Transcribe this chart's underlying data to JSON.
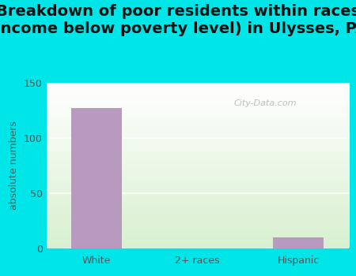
{
  "title": "Breakdown of poor residents within races\n(income below poverty level) in Ulysses, PA",
  "categories": [
    "White",
    "2+ races",
    "Hispanic"
  ],
  "values": [
    127,
    0,
    10
  ],
  "bar_color": "#b89abe",
  "ylabel": "absolute numbers",
  "ylim": [
    0,
    150
  ],
  "yticks": [
    0,
    50,
    100,
    150
  ],
  "background_outer": "#00e5e8",
  "background_inner_top": "#ffffff",
  "background_inner_bottom": "#d8f0d0",
  "title_fontsize": 14,
  "axis_label_fontsize": 9,
  "tick_fontsize": 9,
  "watermark": "City-Data.com"
}
